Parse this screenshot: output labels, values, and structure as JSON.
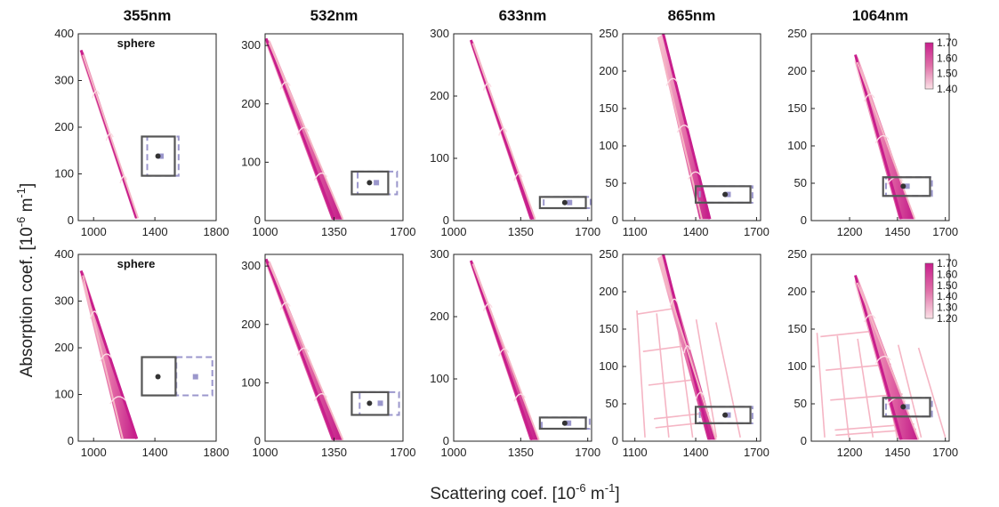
{
  "figure": {
    "xlabel_main": "Scattering coef. [10",
    "xlabel_exp": "-6",
    "xlabel_unit": " m",
    "xlabel_unit_exp": "-1",
    "xlabel_close": "]",
    "ylabel_main": "Absorption coef. [10",
    "ylabel_exp": "-6",
    "ylabel_unit": " m",
    "ylabel_unit_exp": "-1",
    "ylabel_close": "]",
    "column_titles": [
      "355nm",
      "532nm",
      "633nm",
      "865nm",
      "1064nm"
    ],
    "annotations": [
      {
        "row": 0,
        "col": 0,
        "text": "sphere"
      },
      {
        "row": 1,
        "col": 0,
        "text": "sphere"
      }
    ],
    "colors": {
      "dark_band": "#c81e8c",
      "light_band": "#f5b5c4",
      "mid_band": "#e070a8",
      "box_measured": "#555555",
      "box_alt": "#9b97cc"
    }
  },
  "chart_data": [
    {
      "type": "scatter",
      "row": 0,
      "col": 0,
      "xlim": [
        900,
        1800
      ],
      "xticks": [
        1000,
        1400,
        1800
      ],
      "ylim": [
        0,
        400
      ],
      "yticks": [
        0,
        100,
        200,
        300,
        400
      ],
      "band": {
        "dark_top": [
          918,
          365
        ],
        "dark_bottom": [
          1282,
          5
        ],
        "light_top": [
          930,
          355
        ],
        "light_bottom": [
          1290,
          5
        ]
      },
      "measured": {
        "x": 1420,
        "y": 138,
        "box_x": [
          1315,
          1530
        ],
        "box_y": [
          96,
          180
        ]
      },
      "alt": {
        "x": 1440,
        "y": 138,
        "box_x": [
          1350,
          1555
        ],
        "box_y": [
          96,
          180
        ]
      }
    },
    {
      "type": "scatter",
      "row": 0,
      "col": 1,
      "xlim": [
        1000,
        1700
      ],
      "xticks": [
        1000,
        1350,
        1700
      ],
      "ylim": [
        0,
        320
      ],
      "yticks": [
        0,
        100,
        200,
        300
      ],
      "band": {
        "dark_top": [
          1005,
          312
        ],
        "dark_bottom": [
          1350,
          2
        ],
        "light_top": [
          1020,
          305
        ],
        "light_bottom": [
          1395,
          2
        ]
      },
      "measured": {
        "x": 1530,
        "y": 65,
        "box_x": [
          1440,
          1625
        ],
        "box_y": [
          45,
          84
        ]
      },
      "alt": {
        "x": 1565,
        "y": 65,
        "box_x": [
          1470,
          1670
        ],
        "box_y": [
          45,
          84
        ]
      }
    },
    {
      "type": "scatter",
      "row": 0,
      "col": 2,
      "xlim": [
        1000,
        1720
      ],
      "xticks": [
        1000,
        1350,
        1700
      ],
      "ylim": [
        0,
        300
      ],
      "yticks": [
        0,
        100,
        200,
        300
      ],
      "band": {
        "dark_top": [
          1090,
          290
        ],
        "dark_bottom": [
          1410,
          2
        ],
        "light_top": [
          1100,
          285
        ],
        "light_bottom": [
          1425,
          2
        ]
      },
      "measured": {
        "x": 1580,
        "y": 29,
        "box_x": [
          1450,
          1690
        ],
        "box_y": [
          20,
          38
        ]
      },
      "alt": {
        "x": 1605,
        "y": 29,
        "box_x": [
          1470,
          1715
        ],
        "box_y": [
          20,
          38
        ]
      }
    },
    {
      "type": "scatter",
      "row": 0,
      "col": 3,
      "xlim": [
        1040,
        1720
      ],
      "xticks": [
        1100,
        1400,
        1700
      ],
      "ylim": [
        0,
        250
      ],
      "yticks": [
        0,
        50,
        100,
        150,
        200,
        250
      ],
      "band": {
        "dark_top": [
          1240,
          250
        ],
        "dark_bottom": [
          1470,
          2
        ],
        "light_top": [
          1215,
          245
        ],
        "light_bottom": [
          1430,
          2
        ]
      },
      "measured": {
        "x": 1545,
        "y": 35,
        "box_x": [
          1400,
          1670
        ],
        "box_y": [
          24,
          46
        ]
      },
      "alt": {
        "x": 1560,
        "y": 35,
        "box_x": [
          1420,
          1680
        ],
        "box_y": [
          24,
          46
        ]
      }
    },
    {
      "type": "scatter",
      "row": 0,
      "col": 4,
      "xlim": [
        1000,
        1720
      ],
      "xticks": [
        1200,
        1450,
        1700
      ],
      "ylim": [
        0,
        250
      ],
      "yticks": [
        0,
        50,
        100,
        150,
        200,
        250
      ],
      "band": {
        "dark_top": [
          1230,
          222
        ],
        "dark_bottom": [
          1470,
          2
        ],
        "light_top": [
          1240,
          212
        ],
        "light_bottom": [
          1540,
          2
        ]
      },
      "measured": {
        "x": 1480,
        "y": 46,
        "box_x": [
          1375,
          1620
        ],
        "box_y": [
          33,
          58
        ]
      },
      "alt": {
        "x": 1500,
        "y": 46,
        "box_x": [
          1390,
          1630
        ],
        "box_y": [
          33,
          58
        ]
      },
      "colorbar": {
        "min": 1.4,
        "max": 1.7,
        "ticks": [
          "1.70",
          "1.60",
          "1.50",
          "1.40"
        ]
      }
    },
    {
      "type": "scatter",
      "row": 1,
      "col": 0,
      "xlim": [
        900,
        1800
      ],
      "xticks": [
        1000,
        1400,
        1800
      ],
      "ylim": [
        0,
        400
      ],
      "yticks": [
        0,
        100,
        200,
        300,
        400
      ],
      "band": {
        "dark_top": [
          918,
          365
        ],
        "dark_bottom": [
          1282,
          5
        ],
        "light_top": [
          930,
          355
        ],
        "light_bottom": [
          1190,
          5
        ]
      },
      "measured": {
        "x": 1420,
        "y": 138,
        "box_x": [
          1315,
          1535
        ],
        "box_y": [
          98,
          180
        ]
      },
      "alt": {
        "x": 1665,
        "y": 138,
        "box_x": [
          1540,
          1775
        ],
        "box_y": [
          98,
          180
        ]
      }
    },
    {
      "type": "scatter",
      "row": 1,
      "col": 1,
      "xlim": [
        1000,
        1700
      ],
      "xticks": [
        1000,
        1350,
        1700
      ],
      "ylim": [
        0,
        320
      ],
      "yticks": [
        0,
        100,
        200,
        300
      ],
      "band": {
        "dark_top": [
          1005,
          312
        ],
        "dark_bottom": [
          1350,
          2
        ],
        "light_top": [
          1020,
          305
        ],
        "light_bottom": [
          1395,
          2
        ]
      },
      "measured": {
        "x": 1530,
        "y": 65,
        "box_x": [
          1440,
          1625
        ],
        "box_y": [
          45,
          84
        ]
      },
      "alt": {
        "x": 1585,
        "y": 65,
        "box_x": [
          1480,
          1680
        ],
        "box_y": [
          45,
          84
        ]
      }
    },
    {
      "type": "scatter",
      "row": 1,
      "col": 2,
      "xlim": [
        1000,
        1720
      ],
      "xticks": [
        1000,
        1350,
        1700
      ],
      "ylim": [
        0,
        300
      ],
      "yticks": [
        0,
        100,
        200,
        300
      ],
      "band": {
        "dark_top": [
          1090,
          290
        ],
        "dark_bottom": [
          1410,
          2
        ],
        "light_top": [
          1100,
          285
        ],
        "light_bottom": [
          1445,
          2
        ]
      },
      "measured": {
        "x": 1580,
        "y": 29,
        "box_x": [
          1450,
          1690
        ],
        "box_y": [
          20,
          38
        ]
      },
      "alt": {
        "x": 1600,
        "y": 29,
        "box_x": [
          1460,
          1710
        ],
        "box_y": [
          20,
          38
        ]
      }
    },
    {
      "type": "scatter",
      "row": 1,
      "col": 3,
      "xlim": [
        1040,
        1720
      ],
      "xticks": [
        1100,
        1400,
        1700
      ],
      "ylim": [
        0,
        250
      ],
      "yticks": [
        0,
        50,
        100,
        150,
        200,
        250
      ],
      "band": {
        "dark_top": [
          1240,
          250
        ],
        "dark_bottom": [
          1470,
          2
        ],
        "light_top": [
          1215,
          245
        ],
        "light_bottom": [
          1500,
          2
        ]
      },
      "measured": {
        "x": 1545,
        "y": 35,
        "box_x": [
          1400,
          1670
        ],
        "box_y": [
          24,
          46
        ]
      },
      "alt": {
        "x": 1560,
        "y": 35,
        "box_x": [
          1420,
          1680
        ],
        "box_y": [
          24,
          46
        ]
      },
      "grid": true
    },
    {
      "type": "scatter",
      "row": 1,
      "col": 4,
      "xlim": [
        1000,
        1720
      ],
      "xticks": [
        1200,
        1450,
        1700
      ],
      "ylim": [
        0,
        250
      ],
      "yticks": [
        0,
        50,
        100,
        150,
        200,
        250
      ],
      "band": {
        "dark_top": [
          1230,
          222
        ],
        "dark_bottom": [
          1470,
          2
        ],
        "light_top": [
          1240,
          212
        ],
        "light_bottom": [
          1560,
          2
        ]
      },
      "measured": {
        "x": 1480,
        "y": 46,
        "box_x": [
          1375,
          1620
        ],
        "box_y": [
          33,
          58
        ]
      },
      "alt": {
        "x": 1500,
        "y": 46,
        "box_x": [
          1390,
          1630
        ],
        "box_y": [
          33,
          58
        ]
      },
      "grid": true,
      "colorbar": {
        "min": 1.2,
        "max": 1.7,
        "ticks": [
          "1.70",
          "1.60",
          "1.50",
          "1.40",
          "1.30",
          "1.20"
        ]
      }
    }
  ]
}
